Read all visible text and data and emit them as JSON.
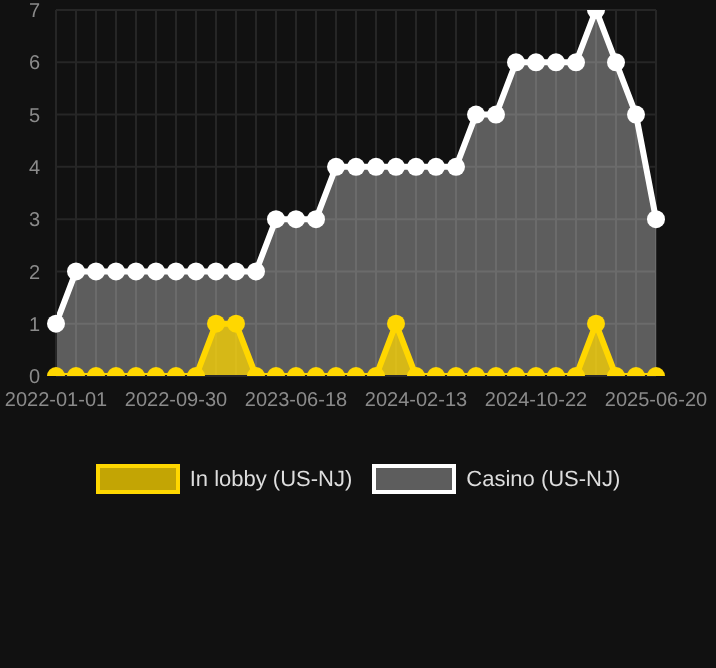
{
  "chart_data": {
    "type": "area",
    "categories": [
      "2022-01-01",
      null,
      null,
      null,
      null,
      null,
      "2022-09-30",
      null,
      null,
      null,
      null,
      null,
      "2023-06-18",
      null,
      null,
      null,
      null,
      null,
      "2024-02-13",
      null,
      null,
      null,
      null,
      null,
      "2024-10-22",
      null,
      null,
      null,
      null,
      null,
      "2025-06-20"
    ],
    "series": [
      {
        "name": "In lobby (US-NJ)",
        "color": "#ffd700",
        "values": [
          0,
          0,
          0,
          0,
          0,
          0,
          0,
          0,
          1,
          1,
          0,
          0,
          0,
          0,
          0,
          0,
          0,
          1,
          0,
          0,
          0,
          0,
          0,
          0,
          0,
          0,
          0,
          1,
          0,
          0,
          0
        ]
      },
      {
        "name": "Casino (US-NJ)",
        "color": "#ffffff",
        "values": [
          1,
          2,
          2,
          2,
          2,
          2,
          2,
          2,
          2,
          2,
          2,
          3,
          3,
          3,
          4,
          4,
          4,
          4,
          4,
          4,
          4,
          5,
          5,
          6,
          6,
          6,
          6,
          7,
          6,
          5,
          3
        ]
      }
    ],
    "ylim": [
      0,
      7
    ],
    "yticks": [
      0,
      1,
      2,
      3,
      4,
      5,
      6,
      7
    ],
    "grid": true,
    "legend": "bottom",
    "marker": "circle",
    "line_style": "solid"
  }
}
